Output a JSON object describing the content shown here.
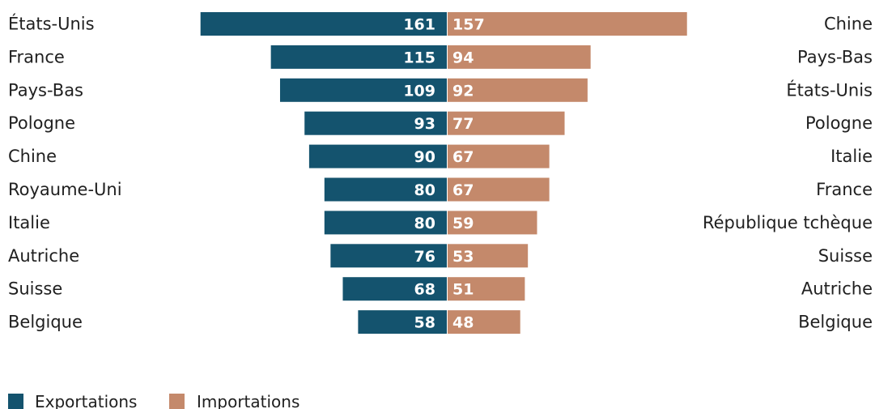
{
  "colors": {
    "exports": "#14536e",
    "imports": "#c4896b"
  },
  "chart_data": {
    "type": "bar",
    "layout": "butterfly",
    "title": "",
    "xlabel": "",
    "ylabel": "",
    "grid": false,
    "legend_position": "bottom-left",
    "exports": {
      "name": "Exportations",
      "categories": [
        "États-Unis",
        "France",
        "Pays-Bas",
        "Pologne",
        "Chine",
        "Royaume-Uni",
        "Italie",
        "Autriche",
        "Suisse",
        "Belgique"
      ],
      "values": [
        161,
        115,
        109,
        93,
        90,
        80,
        80,
        76,
        68,
        58
      ]
    },
    "imports": {
      "name": "Importations",
      "categories": [
        "Chine",
        "Pays-Bas",
        "États-Unis",
        "Pologne",
        "Italie",
        "France",
        "République tchèque",
        "Suisse",
        "Autriche",
        "Belgique"
      ],
      "values": [
        157,
        94,
        92,
        77,
        67,
        67,
        59,
        53,
        51,
        48
      ]
    }
  },
  "legend": [
    {
      "label": "Exportations",
      "color": "#14536e"
    },
    {
      "label": "Importations",
      "color": "#c4896b"
    }
  ]
}
